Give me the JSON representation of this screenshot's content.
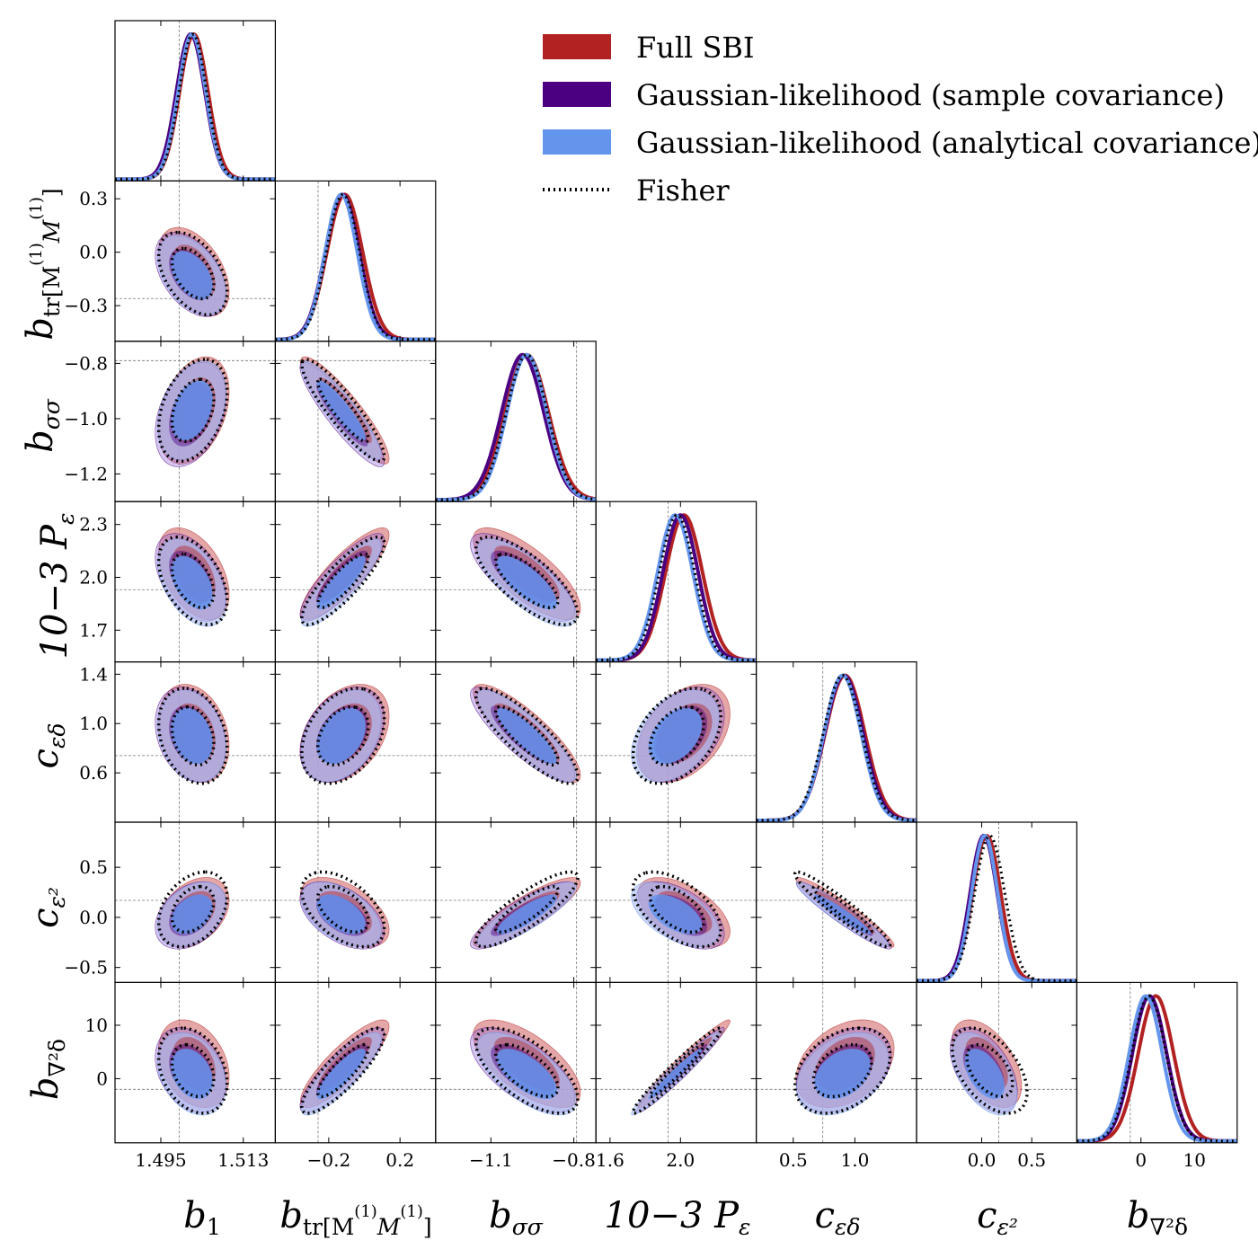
{
  "chart_data": {
    "type": "corner",
    "title": "",
    "legend_position": "top-right",
    "legend": [
      {
        "label": "Full SBI",
        "color": "#b22222",
        "style": "patch"
      },
      {
        "label": "Gaussian-likelihood (sample covariance)",
        "color": "#4b0082",
        "style": "patch"
      },
      {
        "label": "Gaussian-likelihood (analytical covariance)",
        "color": "#6495ed",
        "style": "patch"
      },
      {
        "label": "Fisher",
        "color": "#000000",
        "style": "dotted"
      }
    ],
    "parameters": [
      {
        "name": "b1",
        "range": [
          1.485,
          1.52
        ],
        "ticks": [
          1.495,
          1.513
        ],
        "tick_labels": [
          "1.495",
          "1.513"
        ],
        "truth": 1.499
      },
      {
        "name": "btr",
        "range": [
          -0.5,
          0.4
        ],
        "ticks": [
          -0.2,
          0.2
        ],
        "tick_labels": [
          "−0.2",
          "0.2"
        ],
        "y_ticks": [
          0.3,
          0.0,
          -0.3
        ],
        "y_tick_labels": [
          "0.3",
          "0.0",
          "−0.3"
        ],
        "truth": -0.26
      },
      {
        "name": "bss",
        "range": [
          -1.3,
          -0.72
        ],
        "ticks": [
          -1.1,
          -0.8
        ],
        "tick_labels": [
          "−1.1",
          "−0.8"
        ],
        "y_ticks": [
          -0.8,
          -1.0,
          -1.2
        ],
        "y_tick_labels": [
          "−0.8",
          "−1.0",
          "−1.2"
        ],
        "truth": -0.79
      },
      {
        "name": "Pe",
        "range": [
          1.52,
          2.43
        ],
        "ticks": [
          1.6,
          2.0
        ],
        "tick_labels": [
          "1.6",
          "2.0"
        ],
        "y_ticks": [
          2.3,
          2.0,
          1.7
        ],
        "y_tick_labels": [
          "2.3",
          "2.0",
          "1.7"
        ],
        "truth": 1.93
      },
      {
        "name": "ced",
        "range": [
          0.2,
          1.5
        ],
        "ticks": [
          0.5,
          1.0
        ],
        "tick_labels": [
          "0.5",
          "1.0"
        ],
        "y_ticks": [
          1.4,
          1.0,
          0.6
        ],
        "y_tick_labels": [
          "1.4",
          "1.0",
          "0.6"
        ],
        "truth": 0.74
      },
      {
        "name": "ce2",
        "range": [
          -0.65,
          0.95
        ],
        "ticks": [
          0.0,
          0.5
        ],
        "tick_labels": [
          "0.0",
          "0.5"
        ],
        "y_ticks": [
          0.5,
          0.0,
          -0.5
        ],
        "y_tick_labels": [
          "0.5",
          "0.0",
          "−0.5"
        ],
        "truth": 0.17
      },
      {
        "name": "bnab",
        "range": [
          -12,
          18
        ],
        "ticks": [
          0,
          10
        ],
        "tick_labels": [
          "0",
          "10"
        ],
        "y_ticks": [
          10,
          0
        ],
        "y_tick_labels": [
          "10",
          "0"
        ],
        "truth": -2
      }
    ],
    "axis_labels": {
      "b1": {
        "main": "b",
        "sub": "1",
        "sup": ""
      },
      "btr": {
        "main": "b",
        "sub": "tr[M",
        "sup": "(1)"
      },
      "bss": {
        "main": "b",
        "sub": "σσ",
        "sup": ""
      },
      "Pe": {
        "main": "10−3 P",
        "sub": "ε",
        "sup": ""
      },
      "ced": {
        "main": "c",
        "sub": "εδ",
        "sup": ""
      },
      "ce2": {
        "main": "c",
        "sub": "ε²",
        "sup": ""
      },
      "bnab": {
        "main": "b",
        "sub": "∇²δ",
        "sup": ""
      }
    },
    "series": [
      {
        "name": "Full SBI",
        "color": "#b22222",
        "means": [
          1.5022,
          -0.11,
          -0.97,
          2.02,
          0.92,
          0.05,
          2.8
        ],
        "sigmas": [
          0.0031,
          0.1,
          0.078,
          0.105,
          0.16,
          0.14,
          3.3
        ]
      },
      {
        "name": "Gaussian-likelihood (sample covariance)",
        "color": "#4b0082",
        "means": [
          1.5015,
          -0.125,
          -0.985,
          2.0,
          0.91,
          0.02,
          1.6
        ],
        "sigmas": [
          0.0031,
          0.095,
          0.076,
          0.1,
          0.155,
          0.135,
          3.2
        ]
      },
      {
        "name": "Gaussian-likelihood (analytical covariance)",
        "color": "#6495ed",
        "means": [
          1.5018,
          -0.13,
          -0.97,
          1.97,
          0.9,
          0.03,
          0.9
        ],
        "sigmas": [
          0.003,
          0.09,
          0.072,
          0.1,
          0.15,
          0.13,
          3.1
        ]
      },
      {
        "name": "Fisher",
        "color": "#000000",
        "means": [
          1.502,
          -0.12,
          -0.97,
          1.98,
          0.9,
          0.08,
          1.5
        ],
        "sigmas": [
          0.003,
          0.093,
          0.074,
          0.1,
          0.155,
          0.15,
          3.2
        ]
      }
    ],
    "correlations": [
      [
        1,
        -0.45,
        0.35,
        -0.45,
        -0.25,
        0.35,
        -0.3
      ],
      [
        -0.45,
        1,
        -0.9,
        0.85,
        0.35,
        -0.5,
        0.85
      ],
      [
        0.35,
        -0.9,
        1,
        -0.75,
        -0.85,
        0.85,
        -0.65
      ],
      [
        -0.45,
        0.85,
        -0.75,
        1,
        0.4,
        -0.55,
        0.97
      ],
      [
        -0.25,
        0.35,
        -0.85,
        0.4,
        1,
        -0.95,
        0.35
      ],
      [
        0.35,
        -0.5,
        0.85,
        -0.55,
        -0.95,
        1,
        -0.5
      ],
      [
        -0.3,
        0.85,
        -0.65,
        0.97,
        0.35,
        -0.5,
        1
      ]
    ]
  }
}
